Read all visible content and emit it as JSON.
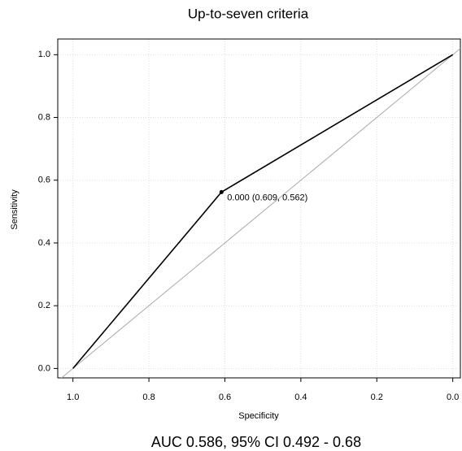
{
  "chart_data": {
    "type": "roc",
    "title": "Up-to-seven criteria",
    "x_label": "Specificity",
    "y_label": "Sensitivity",
    "caption": "AUC 0.586, 95% CI 0.492 - 0.68",
    "x": [
      1,
      0.609,
      0
    ],
    "values": [
      0,
      0.562,
      1
    ],
    "color": "#000000",
    "diagonal": true,
    "diagonal_color": "#aaaaaa",
    "threshold": {
      "label": "0.000 (0.609, 0.562)",
      "x": 0.609,
      "y": 0.562
    },
    "xlim": [
      1.04,
      -0.02
    ],
    "ylim": [
      -0.03,
      1.05
    ],
    "xticks": [
      {
        "value": 1,
        "label": "1.0"
      },
      {
        "value": 0.8,
        "label": "0.8"
      },
      {
        "value": 0.6,
        "label": "0.6"
      },
      {
        "value": 0.4,
        "label": "0.4"
      },
      {
        "value": 0.2,
        "label": "0.2"
      },
      {
        "value": 0,
        "label": "0.0"
      }
    ],
    "yticks": [
      {
        "value": 0,
        "label": "0.0"
      },
      {
        "value": 0.2,
        "label": "0.2"
      },
      {
        "value": 0.4,
        "label": "0.4"
      },
      {
        "value": 0.6,
        "label": "0.6"
      },
      {
        "value": 0.8,
        "label": "0.8"
      },
      {
        "value": 1,
        "label": "1.0"
      }
    ],
    "grid": true
  }
}
